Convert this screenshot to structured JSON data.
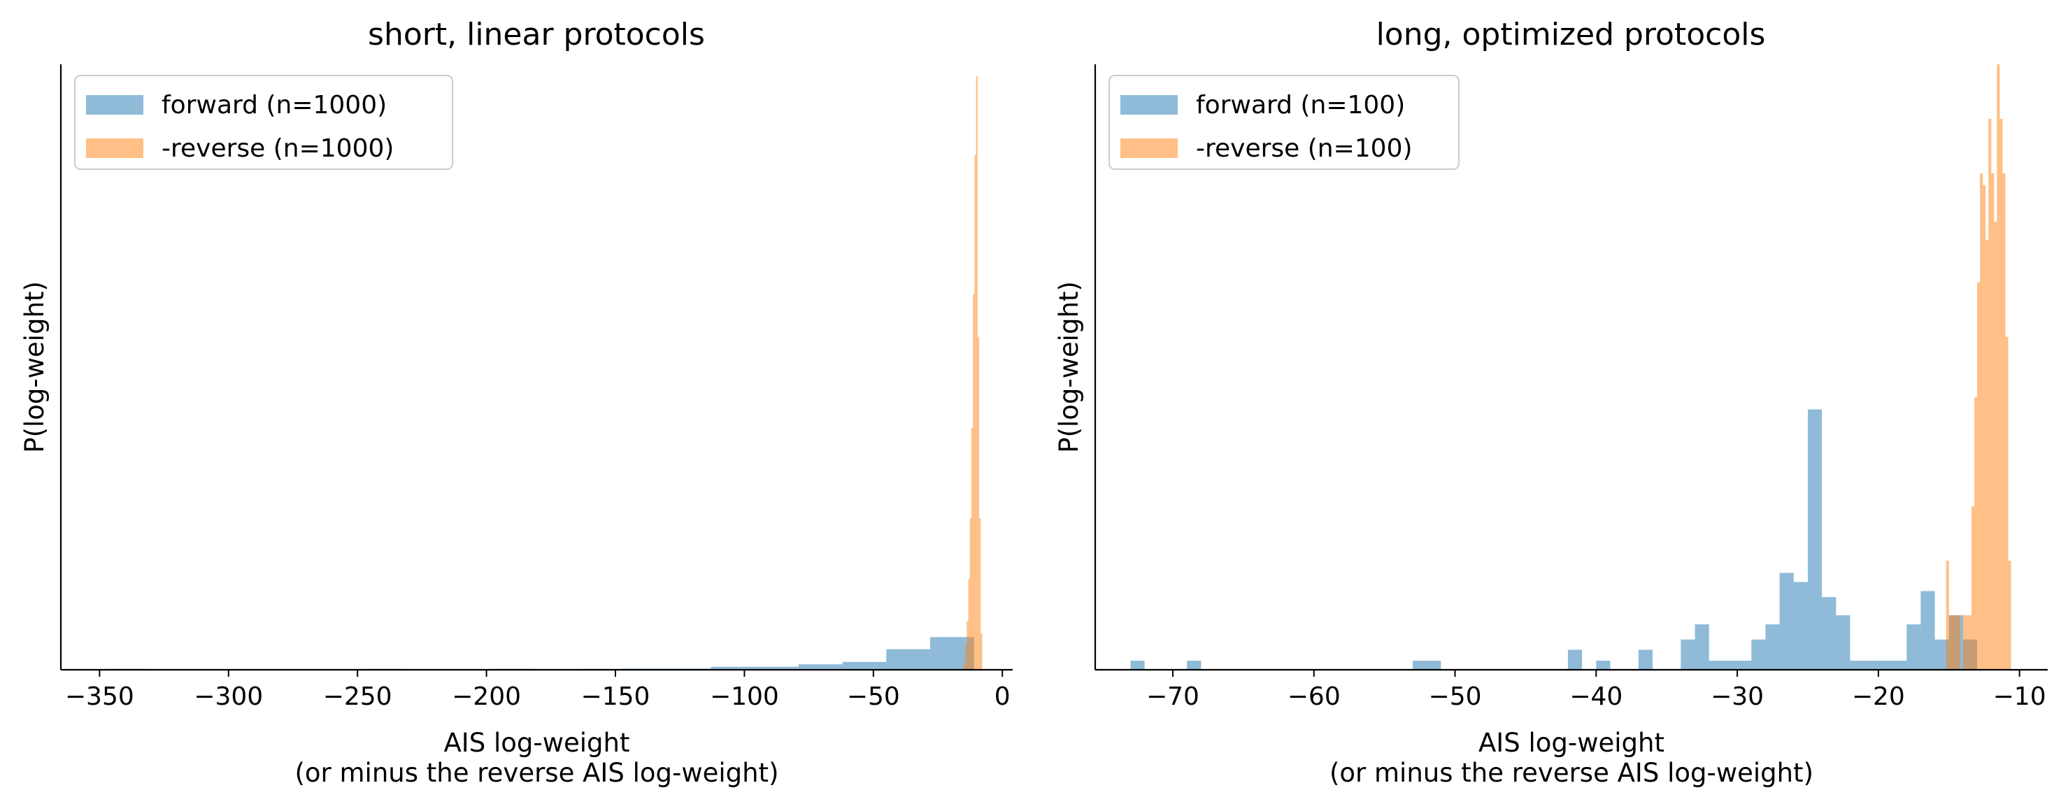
{
  "colors": {
    "forward": "#1f77b4",
    "reverse": "#ff7f0e"
  },
  "bar_opacity": 0.5,
  "chart_data": [
    {
      "type": "histogram",
      "title": "short, linear protocols",
      "xlabel": [
        "AIS log-weight",
        "(or minus the reverse AIS log-weight)"
      ],
      "ylabel": "P(log-weight)",
      "xlim": [
        -365,
        4
      ],
      "ylim": [
        0,
        1.0
      ],
      "xticks": [
        -350,
        -300,
        -250,
        -200,
        -150,
        -100,
        -50,
        0
      ],
      "xtick_labels": [
        "−350",
        "−300",
        "−250",
        "−200",
        "−150",
        "−100",
        "−50",
        "0"
      ],
      "yticks": [],
      "grid": false,
      "legend_position": "top-left",
      "series": [
        {
          "name": "forward (n=1000)",
          "color": "#1f77b4",
          "bins": [
            [
              -348,
              -331,
              0.0015
            ],
            [
              -248,
              -231,
              0.0015
            ],
            [
              -198,
              -181,
              0.0015
            ],
            [
              -164,
              -147,
              0.0015
            ],
            [
              -147,
              -130,
              0.002
            ],
            [
              -130,
              -113,
              0.002
            ],
            [
              -113,
              -96,
              0.005
            ],
            [
              -96,
              -79,
              0.005
            ],
            [
              -79,
              -62,
              0.009
            ],
            [
              -62,
              -45,
              0.013
            ],
            [
              -45,
              -28,
              0.034
            ],
            [
              -28,
              -11,
              0.054
            ]
          ]
        },
        {
          "name": "-reverse (n=1000)",
          "color": "#ff7f0e",
          "bins": [
            [
              -15,
              -14.4,
              0.01
            ],
            [
              -14.4,
              -13.8,
              0.04
            ],
            [
              -13.8,
              -13.2,
              0.08
            ],
            [
              -13.2,
              -12.6,
              0.15
            ],
            [
              -12.6,
              -12,
              0.25
            ],
            [
              -12,
              -11.4,
              0.4
            ],
            [
              -11.4,
              -10.8,
              0.62
            ],
            [
              -10.8,
              -10.2,
              0.85
            ],
            [
              -10.2,
              -9.6,
              0.98
            ],
            [
              -9.6,
              -9,
              0.55
            ],
            [
              -9,
              -8.4,
              0.25
            ],
            [
              -8.4,
              -7.8,
              0.06
            ]
          ]
        }
      ]
    },
    {
      "type": "histogram",
      "title": "long, optimized protocols",
      "xlabel": [
        "AIS log-weight",
        "(or minus the reverse AIS log-weight)"
      ],
      "ylabel": "P(log-weight)",
      "xlim": [
        -75.5,
        -8
      ],
      "ylim": [
        0,
        1.0
      ],
      "xticks": [
        -70,
        -60,
        -50,
        -40,
        -30,
        -20,
        -10
      ],
      "xtick_labels": [
        "−70",
        "−60",
        "−50",
        "−40",
        "−30",
        "−20",
        "−10"
      ],
      "yticks": [],
      "grid": false,
      "legend_position": "top-left",
      "series": [
        {
          "name": "forward (n=100)",
          "color": "#1f77b4",
          "bins": [
            [
              -73,
              -72,
              0.015
            ],
            [
              -72,
              -71,
              0.0
            ],
            [
              -71,
              -70,
              0.0
            ],
            [
              -70,
              -69,
              0.0
            ],
            [
              -69,
              -68,
              0.015
            ],
            [
              -68,
              -67,
              0.0
            ],
            [
              -67,
              -66,
              0.0
            ],
            [
              -66,
              -65,
              0.0
            ],
            [
              -65,
              -64,
              0.0
            ],
            [
              -64,
              -63,
              0.0
            ],
            [
              -63,
              -62,
              0.0
            ],
            [
              -62,
              -61,
              0.0
            ],
            [
              -61,
              -60,
              0.0
            ],
            [
              -60,
              -59,
              0.0
            ],
            [
              -59,
              -58,
              0.0
            ],
            [
              -58,
              -57,
              0.0
            ],
            [
              -57,
              -56,
              0.0
            ],
            [
              -56,
              -55,
              0.0
            ],
            [
              -55,
              -54,
              0.0
            ],
            [
              -54,
              -53,
              0.0
            ],
            [
              -53,
              -52,
              0.015
            ],
            [
              -52,
              -51,
              0.015
            ],
            [
              -51,
              -50,
              0.0
            ],
            [
              -50,
              -49,
              0.0
            ],
            [
              -49,
              -48,
              0.0
            ],
            [
              -48,
              -47,
              0.0
            ],
            [
              -47,
              -46,
              0.0
            ],
            [
              -46,
              -45,
              0.0
            ],
            [
              -45,
              -44,
              0.0
            ],
            [
              -44,
              -43,
              0.0
            ],
            [
              -43,
              -42,
              0.0
            ],
            [
              -42,
              -41,
              0.033
            ],
            [
              -41,
              -40,
              0.0
            ],
            [
              -40,
              -39,
              0.015
            ],
            [
              -39,
              -38,
              0.0
            ],
            [
              -38,
              -37,
              0.0
            ],
            [
              -37,
              -36,
              0.033
            ],
            [
              -36,
              -35,
              0.0
            ],
            [
              -35,
              -34,
              0.0
            ],
            [
              -34,
              -33,
              0.05
            ],
            [
              -33,
              -32,
              0.075
            ],
            [
              -32,
              -31,
              0.015
            ],
            [
              -31,
              -30,
              0.015
            ],
            [
              -30,
              -29,
              0.015
            ],
            [
              -29,
              -28,
              0.05
            ],
            [
              -28,
              -27,
              0.075
            ],
            [
              -27,
              -26,
              0.16
            ],
            [
              -26,
              -25,
              0.145
            ],
            [
              -25,
              -24,
              0.43
            ],
            [
              -24,
              -23,
              0.12
            ],
            [
              -23,
              -22,
              0.09
            ],
            [
              -22,
              -21,
              0.015
            ],
            [
              -21,
              -20,
              0.015
            ],
            [
              -20,
              -19,
              0.015
            ],
            [
              -19,
              -18,
              0.015
            ],
            [
              -18,
              -17,
              0.075
            ],
            [
              -17,
              -16,
              0.13
            ],
            [
              -16,
              -15,
              0.05
            ],
            [
              -15,
              -14,
              0.09
            ],
            [
              -14,
              -13,
              0.05
            ],
            [
              -13,
              -12,
              0.0
            ]
          ]
        },
        {
          "name": "-reverse (n=100)",
          "color": "#ff7f0e",
          "bins": [
            [
              -15.2,
              -15.0,
              0.18
            ],
            [
              -15.0,
              -14.8,
              0.09
            ],
            [
              -14.8,
              -14.6,
              0.09
            ],
            [
              -14.6,
              -14.4,
              0.09
            ],
            [
              -14.4,
              -14.2,
              0.09
            ],
            [
              -14.2,
              -14.0,
              0.0
            ],
            [
              -14.0,
              -13.8,
              0.09
            ],
            [
              -13.8,
              -13.6,
              0.09
            ],
            [
              -13.6,
              -13.4,
              0.09
            ],
            [
              -13.4,
              -13.2,
              0.27
            ],
            [
              -13.2,
              -13.0,
              0.45
            ],
            [
              -13.0,
              -12.8,
              0.64
            ],
            [
              -12.8,
              -12.6,
              0.82
            ],
            [
              -12.6,
              -12.4,
              0.8
            ],
            [
              -12.4,
              -12.2,
              0.71
            ],
            [
              -12.2,
              -12.0,
              0.91
            ],
            [
              -12.0,
              -11.8,
              0.82
            ],
            [
              -11.8,
              -11.6,
              0.74
            ],
            [
              -11.6,
              -11.4,
              1.0
            ],
            [
              -11.4,
              -11.2,
              0.91
            ],
            [
              -11.2,
              -11.0,
              0.82
            ],
            [
              -11.0,
              -10.8,
              0.55
            ],
            [
              -10.8,
              -10.6,
              0.18
            ]
          ]
        }
      ]
    }
  ]
}
